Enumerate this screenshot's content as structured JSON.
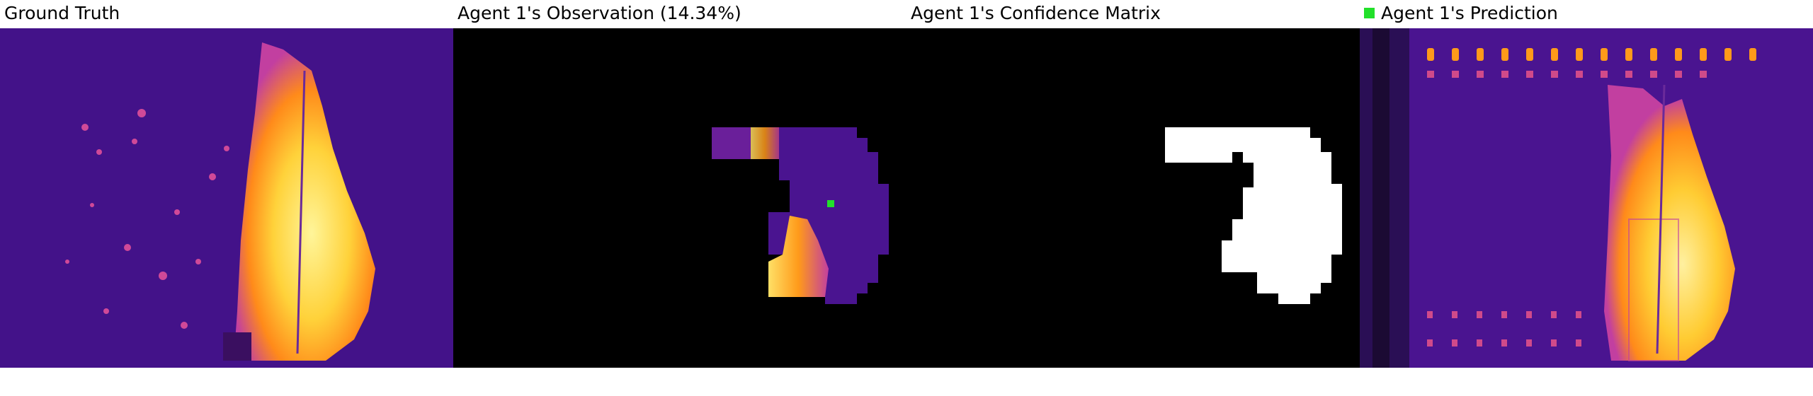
{
  "panels": [
    {
      "title": "Ground Truth"
    },
    {
      "title": "Agent 1's Observation (14.34%)"
    },
    {
      "title": "Agent 1's Confidence Matrix"
    },
    {
      "title": "Agent 1's Prediction"
    }
  ],
  "colors": {
    "background_field": "#4a1490",
    "fire_hot": "#ffe066",
    "fire_mid": "#ff9a1a",
    "fire_edge": "#c23fa0",
    "unobserved": "#000000",
    "confident": "#ffffff",
    "agent_marker": "#22e02a"
  },
  "icons": {
    "agent_marker": "green-square-marker"
  }
}
